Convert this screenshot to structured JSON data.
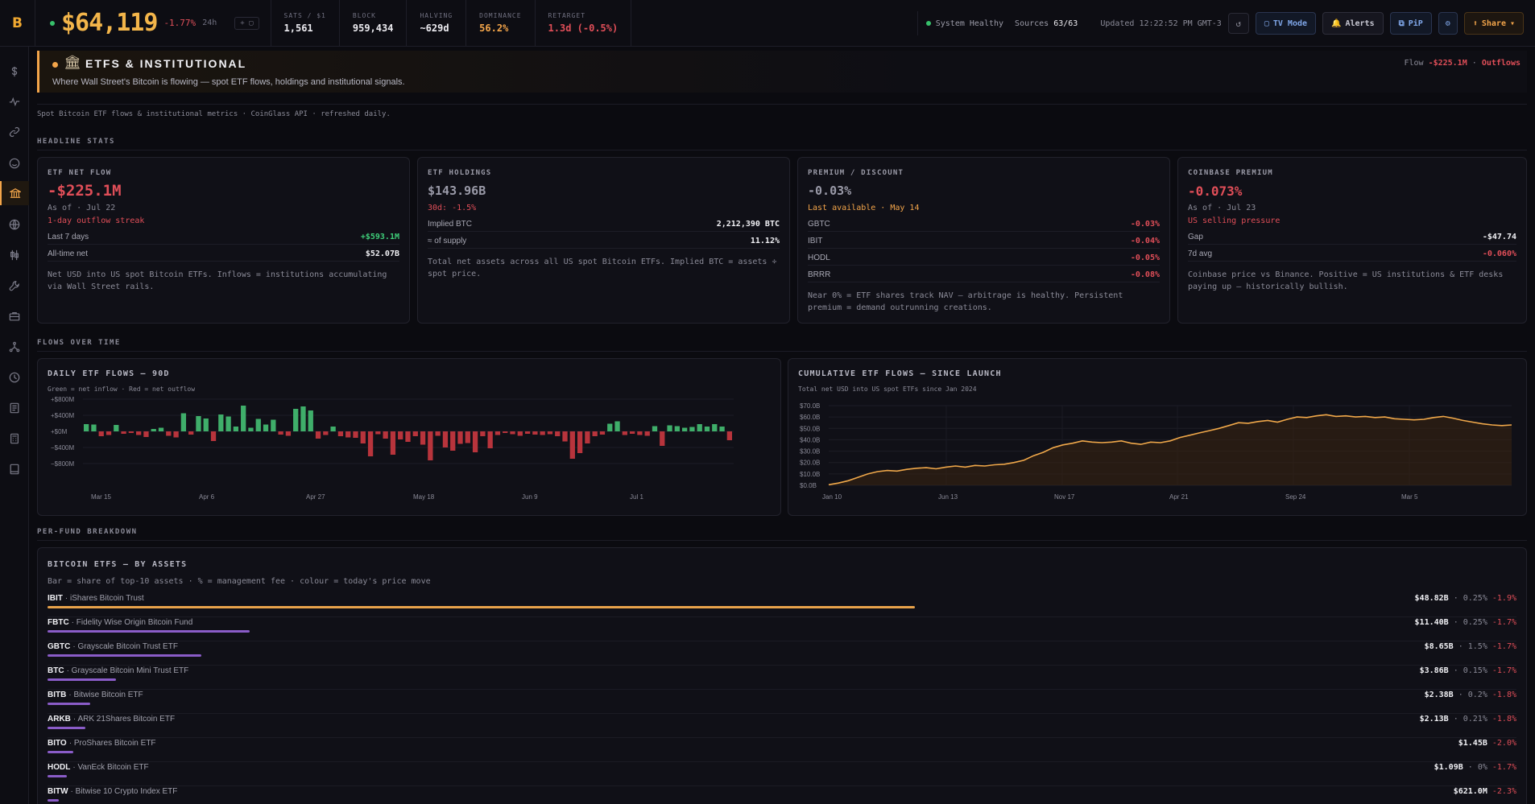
{
  "topbar": {
    "logo": "B",
    "price": "$64,119",
    "change": "-1.77%",
    "change_label": "24h",
    "mini": "+ ▢",
    "stats": [
      {
        "label": "SATS / $1",
        "value": "1,561",
        "color": "white"
      },
      {
        "label": "BLOCK",
        "value": "959,434",
        "color": "white"
      },
      {
        "label": "HALVING",
        "value": "~629d",
        "color": "white"
      },
      {
        "label": "DOMINANCE",
        "value": "56.2%",
        "color": "orange"
      },
      {
        "label": "RETARGET",
        "value": "1.3d (-0.5%)",
        "color": "red"
      }
    ],
    "system": "System Healthy",
    "sources_label": "Sources",
    "sources_value": "63/63",
    "updated": "Updated 12:22:52 PM GMT-3",
    "refresh_icon": "↺",
    "tv_mode": "TV Mode",
    "alerts": "Alerts",
    "pip": "PiP",
    "settings_icon": "⚙",
    "share": "Share",
    "tv_icon": "▢",
    "bell_icon": "🔔",
    "pip_icon": "⧉",
    "share_icon": "⬆",
    "share_caret": "▾"
  },
  "sidebar": {
    "icons": [
      "dollar-icon",
      "pulse-icon",
      "link-icon",
      "smile-icon",
      "bank-icon",
      "globe-icon",
      "candles-icon",
      "wrench-icon",
      "briefcase-icon",
      "network-icon",
      "clock-icon",
      "book-icon",
      "calculator-icon",
      "notebook-icon"
    ]
  },
  "hero": {
    "emoji": "🏛",
    "title": "ETFS & INSTITUTIONAL",
    "subtitle": "Where Wall Street's Bitcoin is flowing — spot ETF flows, holdings and institutional signals.",
    "flow_label": "Flow",
    "flow_value": "-$225.1M",
    "flow_sep": "·",
    "flow_state": "Outflows"
  },
  "meta": "Spot Bitcoin ETF flows & institutional metrics · CoinGlass API · refreshed daily.",
  "sections": {
    "headline": "HEADLINE STATS",
    "flows": "FLOWS OVER TIME",
    "perfund": "PER-FUND BREAKDOWN"
  },
  "cards": {
    "net_flow": {
      "title": "ETF NET FLOW",
      "value": "-$225.1M",
      "asof": "As of · Jul 22",
      "streak": "1-day outflow streak",
      "rows": [
        {
          "k": "Last 7 days",
          "v": "+$593.1M",
          "color": "green"
        },
        {
          "k": "All-time net",
          "v": "$52.07B",
          "color": "white"
        }
      ],
      "desc": "Net USD into US spot Bitcoin ETFs. Inflows = institutions accumulating via Wall Street rails."
    },
    "holdings": {
      "title": "ETF HOLDINGS",
      "value": "$143.96B",
      "sub": "30d: -1.5%",
      "rows": [
        {
          "k": "Implied BTC",
          "v": "2,212,390 BTC",
          "color": "white"
        },
        {
          "k": "≈ of supply",
          "v": "11.12%",
          "color": "white"
        }
      ],
      "desc": "Total net assets across all US spot Bitcoin ETFs. Implied BTC = assets ÷ spot price."
    },
    "premium": {
      "title": "PREMIUM / DISCOUNT",
      "value": "-0.03%",
      "sub": "Last available · May 14",
      "rows": [
        {
          "k": "GBTC",
          "v": "-0.03%",
          "color": "red"
        },
        {
          "k": "IBIT",
          "v": "-0.04%",
          "color": "red"
        },
        {
          "k": "HODL",
          "v": "-0.05%",
          "color": "red"
        },
        {
          "k": "BRRR",
          "v": "-0.08%",
          "color": "red"
        }
      ],
      "desc": "Near 0% = ETF shares track NAV — arbitrage is healthy. Persistent premium = demand outrunning creations."
    },
    "coinbase": {
      "title": "COINBASE PREMIUM",
      "value": "-0.073%",
      "asof": "As of · Jul 23",
      "state": "US selling pressure",
      "rows": [
        {
          "k": "Gap",
          "v": "-$47.74",
          "color": "white"
        },
        {
          "k": "7d avg",
          "v": "-0.060%",
          "color": "red"
        }
      ],
      "desc": "Coinbase price vs Binance. Positive = US institutions & ETF desks paying up — historically bullish."
    }
  },
  "daily_chart": {
    "title": "DAILY ETF FLOWS — 90D",
    "subtitle": "Green = net inflow · Red = net outflow"
  },
  "cum_chart": {
    "title": "CUMULATIVE ETF FLOWS — SINCE LAUNCH",
    "subtitle": "Total net USD into US spot ETFs since Jan 2024"
  },
  "chart_data": [
    {
      "type": "bar",
      "title": "DAILY ETF FLOWS — 90D",
      "ylabel": "",
      "ylim": [
        -800,
        800
      ],
      "y_ticks": [
        "+$800M",
        "+$400M",
        "+$0M",
        "−$400M",
        "−$800M"
      ],
      "x_ticks": [
        "Mar 15",
        "Apr 6",
        "Apr 27",
        "May 18",
        "Jun 9",
        "Jul 1"
      ],
      "values": [
        180,
        170,
        -120,
        -90,
        160,
        -60,
        -40,
        -90,
        -140,
        60,
        90,
        -110,
        -150,
        450,
        -80,
        380,
        320,
        -240,
        420,
        370,
        120,
        640,
        90,
        310,
        170,
        290,
        -80,
        -110,
        560,
        620,
        520,
        -180,
        -90,
        120,
        -120,
        -150,
        -160,
        -300,
        -620,
        -70,
        -180,
        -580,
        -200,
        -260,
        -120,
        -330,
        -720,
        -110,
        -400,
        -480,
        -310,
        -290,
        -520,
        -120,
        -420,
        -90,
        -40,
        -70,
        -110,
        -60,
        -80,
        -90,
        -70,
        -120,
        -250,
        -680,
        -540,
        -300,
        -120,
        -80,
        190,
        250,
        -90,
        -60,
        -90,
        -110,
        130,
        -360,
        150,
        130,
        90,
        110,
        180,
        120,
        180,
        120,
        -220
      ]
    },
    {
      "type": "area",
      "title": "CUMULATIVE ETF FLOWS — SINCE LAUNCH",
      "ylabel": "",
      "ylim": [
        0,
        70
      ],
      "y_ticks": [
        "$70.0B",
        "$60.0B",
        "$50.0B",
        "$40.0B",
        "$30.0B",
        "$20.0B",
        "$10.0B",
        "$0.0B"
      ],
      "x_ticks": [
        "Jan 10",
        "Jun 13",
        "Nov 17",
        "Apr 21",
        "Sep 24",
        "Mar 5"
      ],
      "values": [
        0.5,
        2,
        4,
        7,
        10,
        12,
        13,
        12.5,
        14,
        15,
        15.5,
        14.5,
        16,
        17,
        16,
        17.5,
        17,
        18,
        18.5,
        20,
        22,
        26,
        29,
        33,
        35.5,
        37,
        39,
        38,
        37.5,
        38,
        39,
        37,
        36,
        38,
        37.5,
        39,
        42,
        44,
        46,
        48,
        50,
        52.5,
        55,
        54.5,
        56,
        57,
        55.5,
        58,
        60,
        59.5,
        61,
        62,
        60.5,
        61,
        60,
        60.5,
        59.5,
        60,
        58.5,
        58,
        57.5,
        58,
        59.5,
        60.5,
        59,
        57,
        55.5,
        54,
        53,
        52.5,
        53
      ]
    }
  ],
  "funds": {
    "title": "BITCOIN ETFS — BY ASSETS",
    "subtitle": "Bar = share of top-10 assets · % = management fee · colour = today's price move",
    "rows": [
      {
        "ticker": "IBIT",
        "name": "iShares Bitcoin Trust",
        "assets": "$48.82B",
        "fee": "0.25%",
        "move": "-1.9%",
        "share": 1.0,
        "color": "#e8a24a"
      },
      {
        "ticker": "FBTC",
        "name": "Fidelity Wise Origin Bitcoin Fund",
        "assets": "$11.40B",
        "fee": "0.25%",
        "move": "-1.7%",
        "share": 0.233,
        "color": "#8a5cc8"
      },
      {
        "ticker": "GBTC",
        "name": "Grayscale Bitcoin Trust ETF",
        "assets": "$8.65B",
        "fee": "1.5%",
        "move": "-1.7%",
        "share": 0.177,
        "color": "#8a5cc8"
      },
      {
        "ticker": "BTC",
        "name": "Grayscale Bitcoin Mini Trust ETF",
        "assets": "$3.86B",
        "fee": "0.15%",
        "move": "-1.7%",
        "share": 0.079,
        "color": "#8a5cc8"
      },
      {
        "ticker": "BITB",
        "name": "Bitwise Bitcoin ETF",
        "assets": "$2.38B",
        "fee": "0.2%",
        "move": "-1.8%",
        "share": 0.049,
        "color": "#8a5cc8"
      },
      {
        "ticker": "ARKB",
        "name": "ARK 21Shares Bitcoin ETF",
        "assets": "$2.13B",
        "fee": "0.21%",
        "move": "-1.8%",
        "share": 0.044,
        "color": "#8a5cc8"
      },
      {
        "ticker": "BITO",
        "name": "ProShares Bitcoin ETF",
        "assets": "$1.45B",
        "fee": "",
        "move": "-2.0%",
        "share": 0.03,
        "color": "#8a5cc8"
      },
      {
        "ticker": "HODL",
        "name": "VanEck Bitcoin ETF",
        "assets": "$1.09B",
        "fee": "0%",
        "move": "-1.7%",
        "share": 0.022,
        "color": "#8a5cc8"
      },
      {
        "ticker": "BITW",
        "name": "Bitwise 10 Crypto Index ETF",
        "assets": "$621.0M",
        "fee": "",
        "move": "-2.3%",
        "share": 0.013,
        "color": "#8a5cc8"
      }
    ]
  }
}
